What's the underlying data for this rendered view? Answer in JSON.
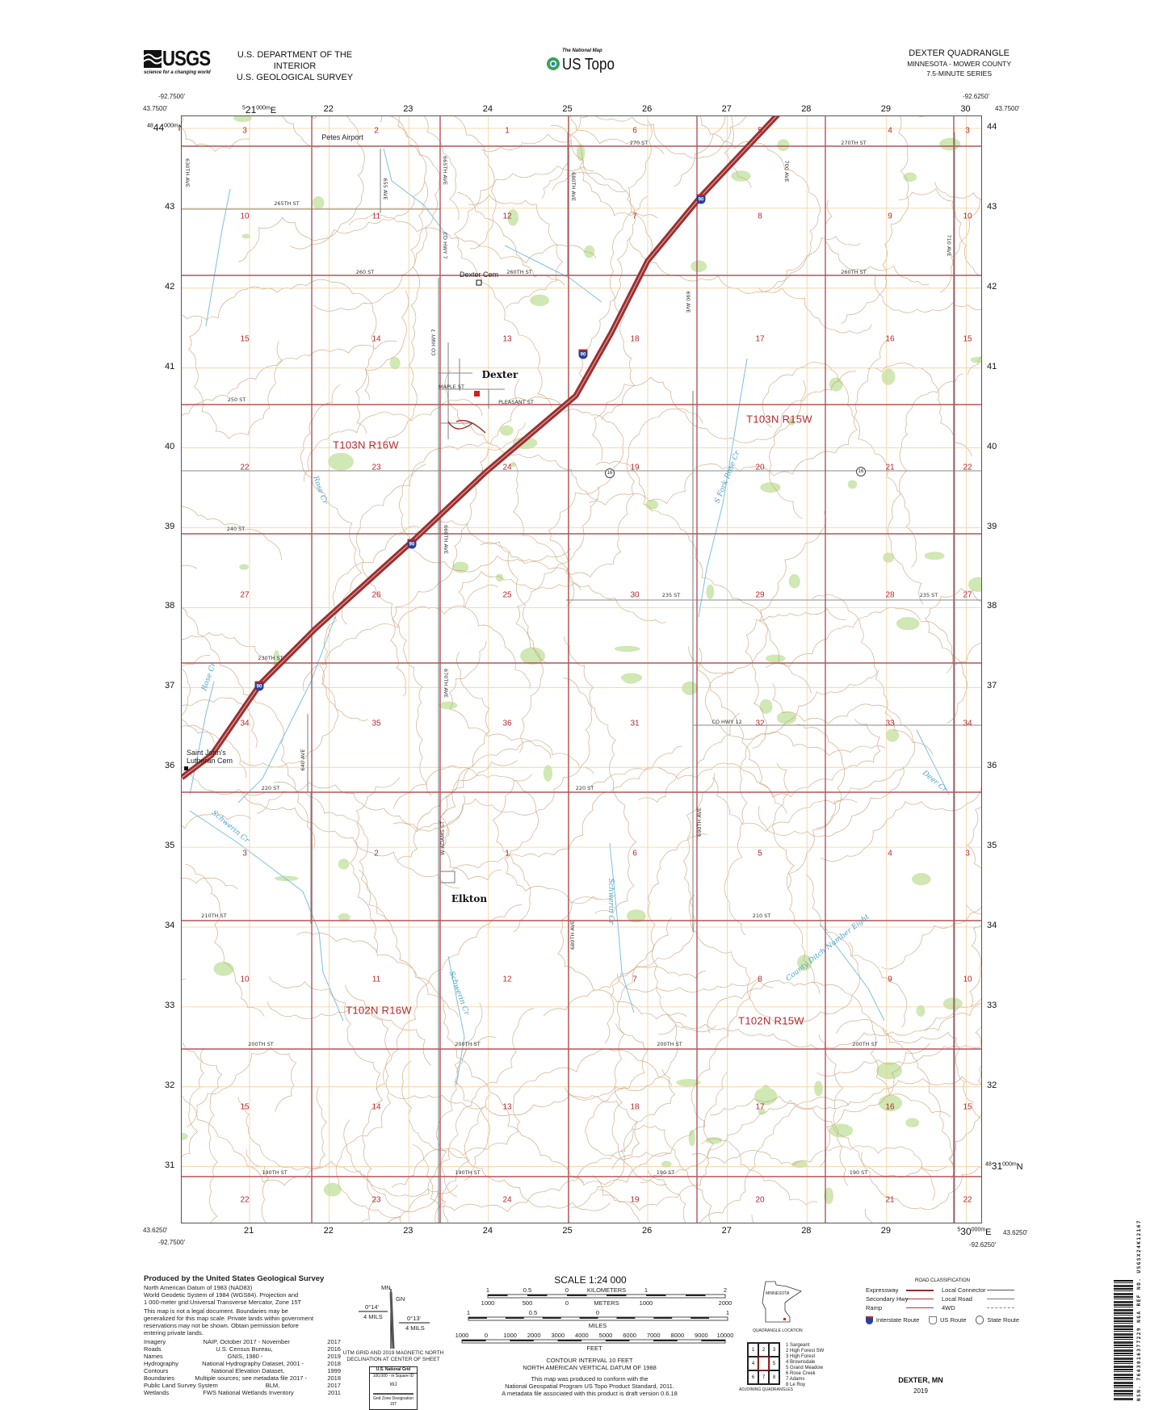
{
  "header": {
    "agency_logo": "USGS",
    "agency_tagline": "science for a changing world",
    "dept_line1": "U.S. DEPARTMENT OF THE INTERIOR",
    "dept_line2": "U.S. GEOLOGICAL SURVEY",
    "product_kicker": "The National Map",
    "product_name": "US Topo",
    "quad_title": "DEXTER QUADRANGLE",
    "quad_state_county": "MINNESOTA - MOWER COUNTY",
    "quad_series": "7.5-MINUTE SERIES"
  },
  "corners": {
    "west_lon": "-92.7500'",
    "east_lon": "-92.6250'",
    "north_lat": "43.7500'",
    "south_lat": "43.6250'"
  },
  "utm_easting_labels": [
    "21",
    "22",
    "23",
    "24",
    "25",
    "26",
    "27",
    "28",
    "29",
    "30"
  ],
  "utm_easting_first": {
    "pre": "5",
    "main": "21",
    "sup": "000m",
    "suf": "E"
  },
  "utm_easting_last": {
    "pre": "5",
    "main": "30",
    "sup": "000m",
    "suf": "E"
  },
  "utm_northing_labels": [
    "44",
    "43",
    "42",
    "41",
    "40",
    "39",
    "38",
    "37",
    "36",
    "35",
    "34",
    "33",
    "32",
    "31"
  ],
  "utm_northing_first": {
    "pre": "48",
    "main": "44",
    "sup": "000m",
    "suf": "N"
  },
  "utm_northing_last": {
    "pre": "48",
    "main": "31",
    "sup": "000m",
    "suf": "N"
  },
  "section_numbers": [
    [
      "3",
      "2",
      "1",
      "6",
      "5",
      "4",
      "3"
    ],
    [
      "10",
      "11",
      "12",
      "7",
      "8",
      "9",
      "10"
    ],
    [
      "15",
      "14",
      "13",
      "18",
      "17",
      "16",
      "15"
    ],
    [
      "22",
      "23",
      "24",
      "19",
      "20",
      "21",
      "22"
    ],
    [
      "27",
      "26",
      "25",
      "30",
      "29",
      "28",
      "27"
    ],
    [
      "34",
      "35",
      "36",
      "31",
      "32",
      "33",
      "34"
    ],
    [
      "3",
      "2",
      "1",
      "6",
      "5",
      "4",
      "3"
    ],
    [
      "10",
      "11",
      "12",
      "7",
      "8",
      "9",
      "10"
    ],
    [
      "15",
      "14",
      "13",
      "18",
      "17",
      "16",
      "15"
    ],
    [
      "22",
      "23",
      "24",
      "19",
      "20",
      "21",
      "22"
    ]
  ],
  "townships": {
    "nw": "T103N R16W",
    "ne": "T103N R15W",
    "sw": "T102N R16W",
    "se": "T102N R15W"
  },
  "places": {
    "dexter": "Dexter",
    "elkton": "Elkton",
    "petes_airport": "Petes Airport",
    "dexter_cem": "Dexter Cem",
    "st_johns_cem_1": "Saint John's",
    "st_johns_cem_2": "Lutheran Cem"
  },
  "creeks": {
    "rose_cr": "Rose Cr",
    "s_fork_rose_cr": "S Fork Rose Cr",
    "schwerin_cr": "Schwerin Cr",
    "deer_cr": "Deer Cr",
    "county_ditch": "County Ditch Number Eight"
  },
  "roads": {
    "st270": "270 ST",
    "st270th": "270TH ST",
    "st265th": "265TH ST",
    "st260": "260 ST",
    "st260th": "260TH ST",
    "st250": "250 ST",
    "maple": "MAPLE ST",
    "pleasant": "PLEASANT ST",
    "st240": "240 ST",
    "st235": "235 ST",
    "st230th": "230TH ST",
    "cohwy12": "CO HWY 12",
    "st220": "220 ST",
    "st210th": "210TH ST",
    "st210": "210 ST",
    "st200th": "200TH ST",
    "st190th": "190TH ST",
    "st190": "190 ST",
    "ave630th": "630TH AVE",
    "ave655": "655 AVE",
    "ave665th": "665TH AVE",
    "cohwy7": "CO HWY 7",
    "ave680th": "680TH AVE",
    "ave690": "690 AVE",
    "ave700": "700 AVE",
    "ave710": "710 AVE",
    "ave640": "640 AVE",
    "ave660th": "660TH AVE",
    "ave670th": "670TH AVE",
    "w_adams": "W ADAMS ST",
    "ave690th": "690TH AVE",
    "interstate": "90",
    "county_route": "16"
  },
  "footer": {
    "produced_by": "Produced by the United States Geological Survey",
    "datum_lines": [
      "North American Datum of 1983 (NAD83)",
      "World Geodetic System of 1984 (WGS84).  Projection and",
      "1 000-meter grid:Universal Transverse Mercator, Zone 15T"
    ],
    "disclaimer": [
      "This map is not a legal document. Boundaries may be",
      "generalized for this map scale. Private lands within government",
      "reservations may not be shown. Obtain permission before",
      "entering private lands."
    ],
    "sources": [
      {
        "item": "Imagery",
        "src": "NAIP, October 2017 - November",
        "year": "2017"
      },
      {
        "item": "Roads",
        "src": "U.S. Census Bureau,",
        "year": "2016"
      },
      {
        "item": "Names",
        "src": "GNIS, 1980 -",
        "year": "2019"
      },
      {
        "item": "Hydrography",
        "src": "National Hydrography Dataset, 2001 -",
        "year": "2018"
      },
      {
        "item": "Contours",
        "src": "National Elevation Dataset,",
        "year": "1999"
      },
      {
        "item": "Boundaries",
        "src": "Multiple sources; see metadata file 2017 -",
        "year": "2018"
      },
      {
        "item": "Public Land Survey System",
        "src": "BLM,",
        "year": "2017"
      },
      {
        "item": "Wetlands",
        "src": "FWS National Wetlands Inventory",
        "year": "2011"
      }
    ],
    "declination": {
      "mn": "MN",
      "gn": "GN",
      "left_angle": "0°14'",
      "left_mils": "4 MILS",
      "right_angle": "0°13'",
      "right_mils": "4 MILS",
      "caption1": "UTM GRID AND 2019 MAGNETIC NORTH",
      "caption2": "DECLINATION AT CENTER OF SHEET"
    },
    "grid_box": {
      "title": "U.S. National Grid",
      "subtitle": "100,000 - m Square ID",
      "square_id": "WJ",
      "zone_label": "Grid Zone Designation",
      "zone": "15T"
    },
    "scale": {
      "title": "SCALE 1:24 000",
      "km_labels": [
        "1",
        "0.5",
        "0",
        "KILOMETERS",
        "1",
        "2"
      ],
      "m_labels": [
        "1000",
        "500",
        "0",
        "METERS",
        "1000",
        "2000"
      ],
      "mi_labels": [
        "1",
        "0.5",
        "0",
        "1"
      ],
      "mi_unit": "MILES",
      "ft_labels": [
        "1000",
        "0",
        "1000",
        "2000",
        "3000",
        "4000",
        "5000",
        "6000",
        "7000",
        "8000",
        "9000",
        "10000"
      ],
      "ft_unit": "FEET"
    },
    "contour1": "CONTOUR INTERVAL 10 FEET",
    "contour2": "NORTH AMERICAN VERTICAL DATUM OF 1988",
    "conform": [
      "This map was produced to conform with the",
      "National Geospatial Program US Topo Product Standard, 2011.",
      "A metadata file associated with this product is draft version 0.6.18"
    ],
    "quad_location_state": "MINNESOTA",
    "quad_location_caption": "QUADRANGLE LOCATION",
    "adjoining_caption": "ADJOINING QUADRANGLES",
    "adjoining_cells": [
      "1",
      "2",
      "3",
      "4",
      "",
      "5",
      "6",
      "7",
      "8"
    ],
    "adjoining_list": [
      "1 Sargeant",
      "2 High Forest SW",
      "3 High Forest",
      "4 Brownsdale",
      "5 Grand Meadow",
      "6 Rose Creek",
      "7 Adams",
      "8 Le Roy"
    ],
    "road_class_title": "ROAD CLASSIFICATION",
    "road_class": {
      "expressway": "Expressway",
      "secondary": "Secondary Hwy",
      "ramp": "Ramp",
      "local_connector": "Local Connector",
      "local_road": "Local Road",
      "fourwd": "4WD",
      "interstate": "Interstate Route",
      "us_route": "US Route",
      "state_route": "State Route"
    },
    "sheet_name": "DEXTER, MN",
    "sheet_year": "2019",
    "barcode_text": "NSN. 7643016377229  NGA REF NO. USGSX24K12167"
  },
  "colors": {
    "section_line": "#b0565a",
    "interstate": "#9c2f2f",
    "contour": "#c9a27a",
    "utm_grid": "#f1cf98",
    "water": "#7cc0dd",
    "vegetation": "#cfe8b4",
    "section_text": "#b4282e"
  }
}
